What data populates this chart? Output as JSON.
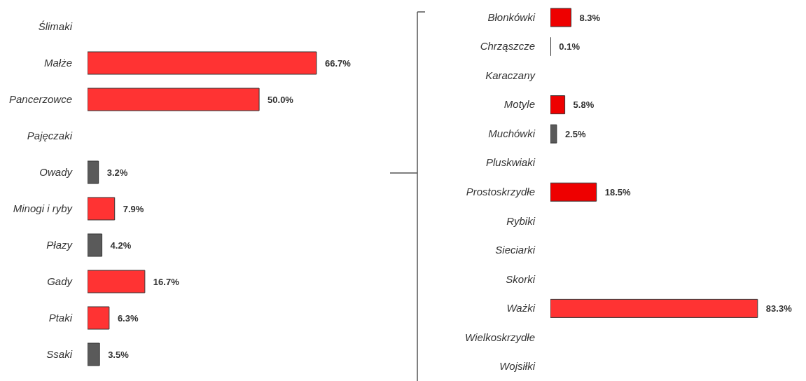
{
  "chart_data": [
    {
      "type": "bar",
      "orientation": "horizontal",
      "categories": [
        "Ślimaki",
        "Małże",
        "Pancerzowce",
        "Pajęczaki",
        "Owady",
        "Minogi i ryby",
        "Płazy",
        "Gady",
        "Ptaki",
        "Ssaki"
      ],
      "values": [
        null,
        66.7,
        50.0,
        null,
        3.2,
        7.9,
        4.2,
        16.7,
        6.3,
        3.5
      ],
      "colors": [
        "#ff3333",
        "#ff3333",
        "#ff3333",
        "#ff3333",
        "#5a5a5a",
        "#ff3333",
        "#5a5a5a",
        "#ff3333",
        "#ff3333",
        "#5a5a5a"
      ],
      "value_labels": [
        null,
        "66.7%",
        "50.0%",
        null,
        "3.2%",
        "7.9%",
        "4.2%",
        "16.7%",
        "6.3%",
        "3.5%"
      ],
      "grid": false,
      "legend": false
    },
    {
      "type": "bar",
      "orientation": "horizontal",
      "categories": [
        "Błonkówki",
        "Chrząszcze",
        "Karaczany",
        "Motyle",
        "Muchówki",
        "Pluskwiaki",
        "Prostoskrzydłe",
        "Rybiki",
        "Sieciarki",
        "Skorki",
        "Ważki",
        "Wielkoskrzydłe",
        "Wojsiłki"
      ],
      "values": [
        8.3,
        0.1,
        null,
        5.8,
        2.5,
        null,
        18.5,
        null,
        null,
        null,
        83.3,
        null,
        null
      ],
      "colors": [
        "#ee0000",
        "#222222",
        "#ee0000",
        "#ee0000",
        "#5a5a5a",
        "#ee0000",
        "#ee0000",
        "#ee0000",
        "#ee0000",
        "#ee0000",
        "#ff3333",
        "#ee0000",
        "#ee0000"
      ],
      "value_labels": [
        "8.3%",
        "0.1%",
        null,
        "5.8%",
        "2.5%",
        null,
        "18.5%",
        null,
        null,
        null,
        "83.3%",
        null,
        null
      ],
      "grid": false,
      "legend": false
    }
  ]
}
